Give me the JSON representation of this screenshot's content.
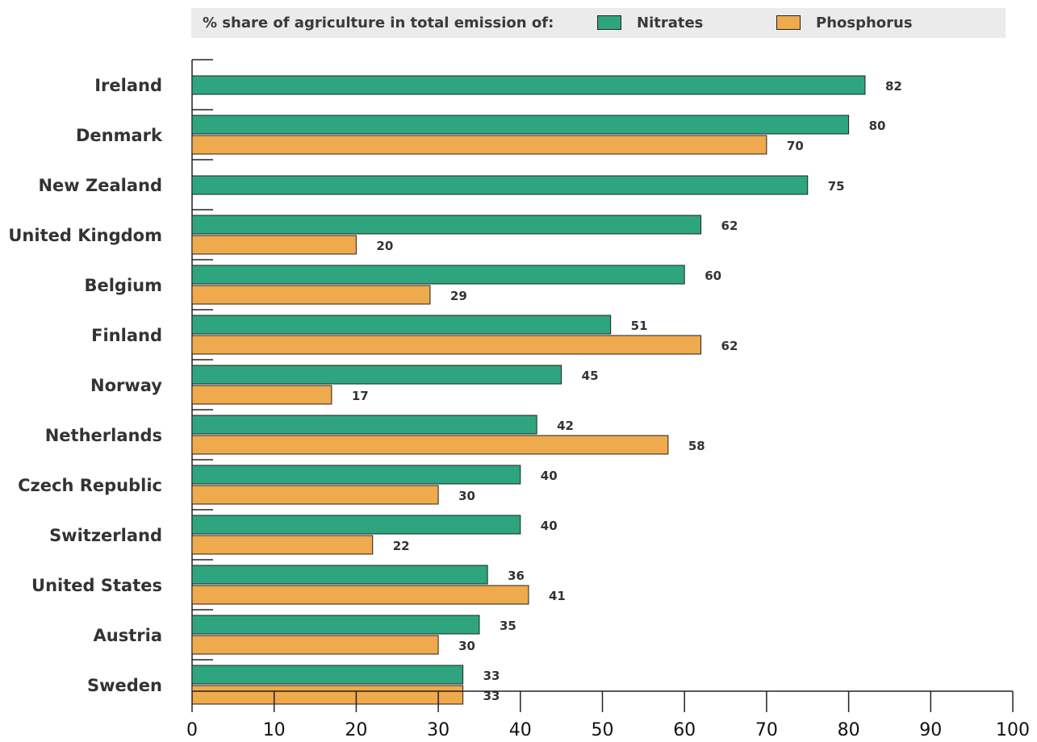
{
  "legend": {
    "title": "% share of agriculture in total emission of:",
    "items": [
      {
        "label": "Nitrates",
        "color": "#2ea57f"
      },
      {
        "label": "Phosphorus",
        "color": "#eeaa4c"
      }
    ]
  },
  "chart_data": {
    "type": "bar",
    "orientation": "horizontal",
    "categories": [
      "Ireland",
      "Denmark",
      "New Zealand",
      "United Kingdom",
      "Belgium",
      "Finland",
      "Norway",
      "Netherlands",
      "Czech Republic",
      "Switzerland",
      "United States",
      "Austria",
      "Sweden"
    ],
    "series": [
      {
        "name": "Nitrates",
        "color": "#2ea57f",
        "values": [
          82,
          80,
          75,
          62,
          60,
          51,
          45,
          42,
          40,
          40,
          36,
          35,
          33
        ]
      },
      {
        "name": "Phosphorus",
        "color": "#eeaa4c",
        "values": [
          null,
          70,
          null,
          20,
          29,
          62,
          17,
          58,
          30,
          22,
          41,
          30,
          33
        ]
      }
    ],
    "xlim": [
      0,
      100
    ],
    "xticks": [
      0,
      10,
      20,
      30,
      40,
      50,
      60,
      70,
      80,
      90,
      100
    ],
    "legend_position": "top",
    "grid": false
  }
}
